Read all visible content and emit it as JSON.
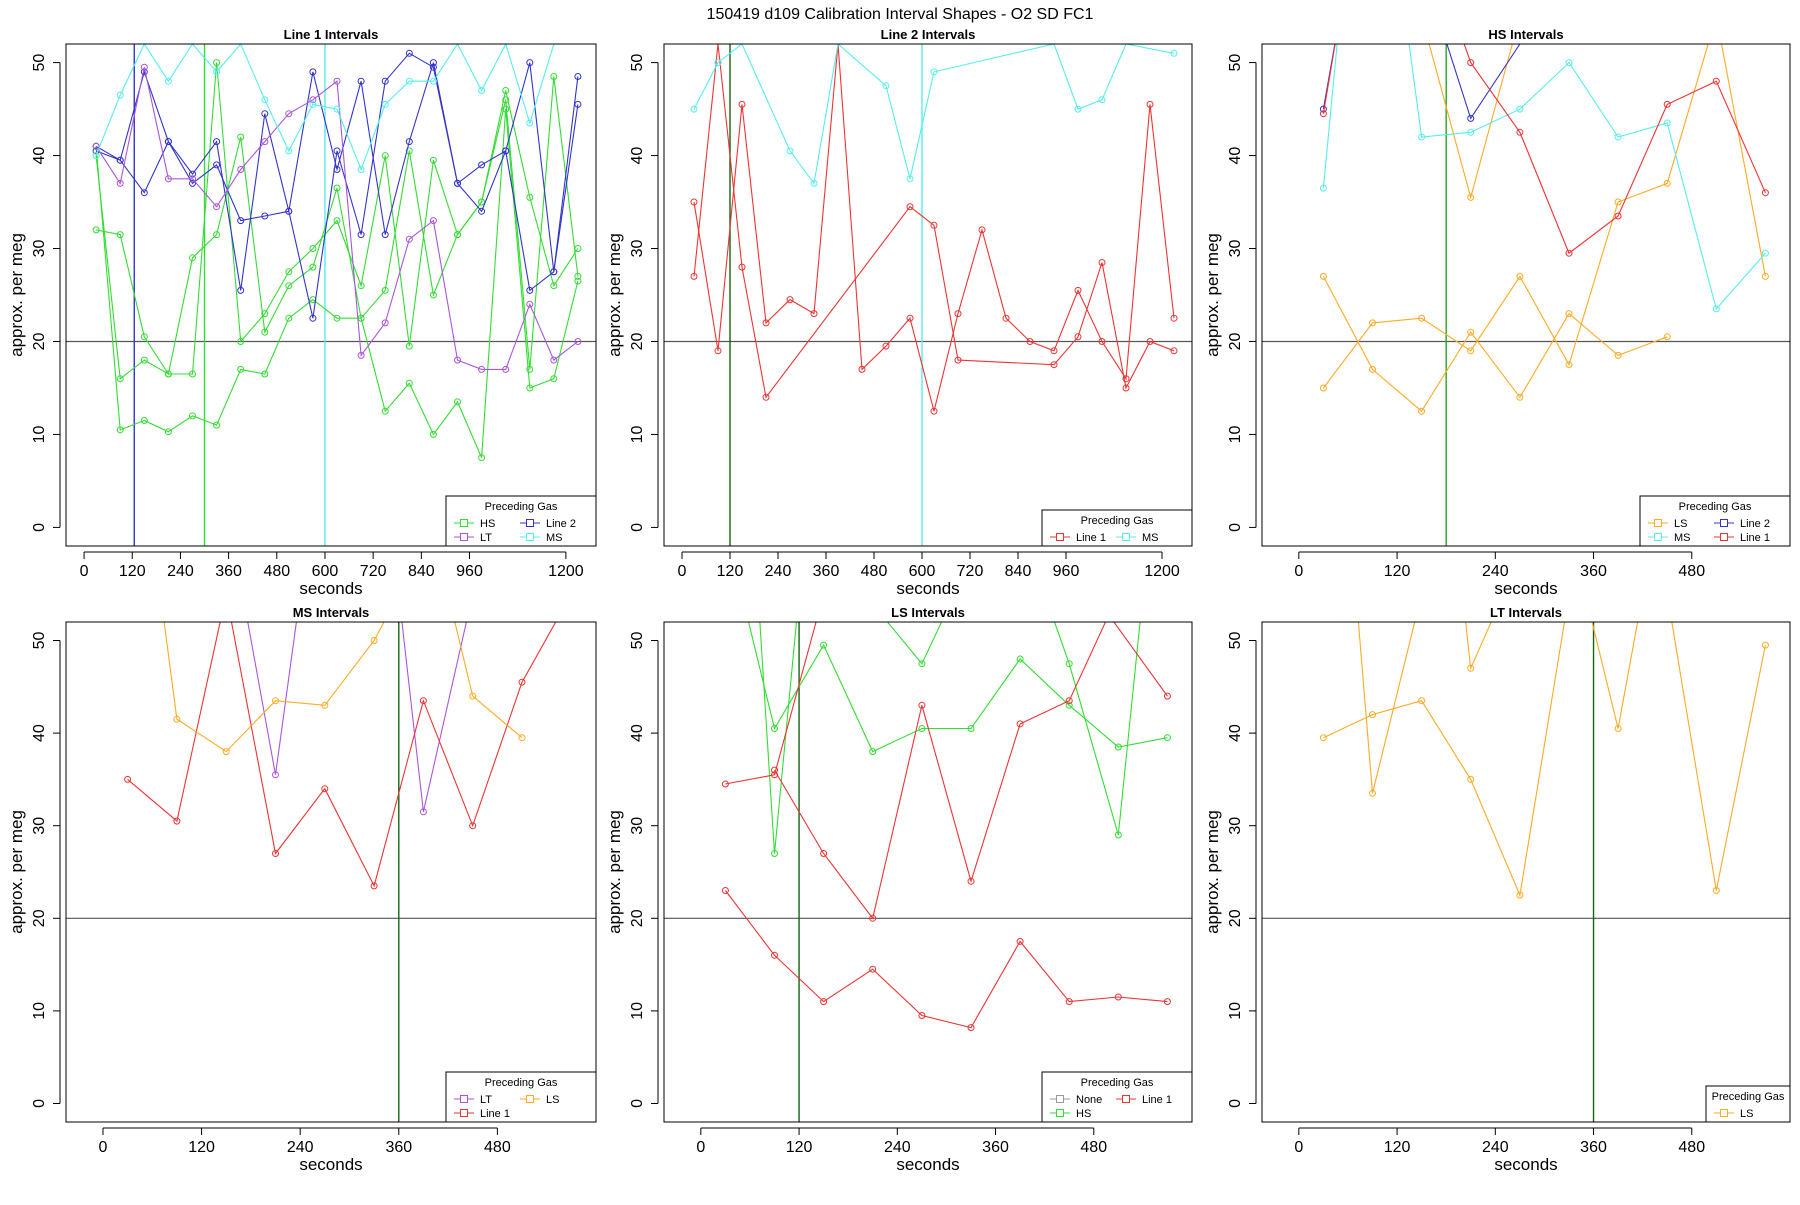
{
  "page_title": "150419   d109   Calibration Interval Shapes - O2 SD FC1",
  "colors": {
    "HS": "#33dd33",
    "Line 2": "#3333cc",
    "LT": "#aa55dd",
    "MS": "#55eeee",
    "Line 1": "#ee3333",
    "LS": "#ffaa22",
    "None": "#999999",
    "vline_green": "#22aa22",
    "vline_dark_green": "#116611",
    "refline": "#555555"
  },
  "chart_data": [
    {
      "type": "line",
      "title": "Line 1 Intervals",
      "xlabel": "seconds",
      "ylabel": "approx. per meg",
      "xlim": [
        -45,
        1275
      ],
      "ylim": [
        -2,
        52
      ],
      "xticks": [
        0,
        120,
        240,
        360,
        480,
        600,
        720,
        840,
        960,
        1200
      ],
      "yticks": [
        0,
        10,
        20,
        30,
        40,
        50
      ],
      "hlines": [
        20
      ],
      "vlines": [
        {
          "x": 125,
          "color": "Line 2"
        },
        {
          "x": 300,
          "color": "HS"
        },
        {
          "x": 600,
          "color": "MS"
        }
      ],
      "legend": {
        "title": "Preceding Gas",
        "position": "bottom-right",
        "entries": [
          "HS",
          "Line 2",
          "LT",
          "MS"
        ]
      },
      "series": [
        {
          "name": "HS",
          "x": [
            30,
            90,
            150,
            210,
            270,
            330,
            390,
            450,
            510,
            570,
            630,
            690,
            750,
            810,
            870,
            930,
            990,
            1050,
            1110,
            1170,
            1230
          ],
          "values": [
            32,
            31.5,
            20.5,
            16.5,
            29,
            31.5,
            42,
            21,
            26,
            28,
            36.5,
            22.5,
            25.5,
            40.5,
            25,
            31.5,
            35,
            47,
            35.5,
            26,
            30
          ]
        },
        {
          "name": "HS",
          "x": [
            30,
            90,
            150,
            210,
            270,
            330,
            390,
            450,
            510,
            570,
            630,
            690,
            750,
            810,
            870,
            930,
            990,
            1050,
            1110,
            1170,
            1230
          ],
          "values": [
            41,
            10.5,
            11.5,
            10.3,
            12,
            11,
            17,
            16.5,
            22.5,
            24.5,
            22.5,
            22.5,
            12.5,
            15.5,
            10,
            13.5,
            7.5,
            45,
            15,
            16,
            26.5
          ]
        },
        {
          "name": "HS",
          "x": [
            30,
            90,
            150,
            210,
            270,
            330,
            390,
            450,
            510,
            570,
            630,
            690,
            750,
            810,
            870,
            930,
            990,
            1050,
            1110,
            1170,
            1230
          ],
          "values": [
            40,
            16,
            18,
            16.5,
            16.5,
            50,
            20,
            23,
            27.5,
            30,
            33,
            26,
            40,
            19.5,
            39.5,
            31.5,
            35,
            46,
            17,
            48.5,
            27
          ]
        },
        {
          "name": "Line 2",
          "x": [
            30,
            90,
            150,
            210,
            270,
            330,
            390,
            450,
            510,
            570,
            630,
            690,
            750,
            810,
            870,
            930,
            990,
            1050,
            1110,
            1170,
            1230
          ],
          "values": [
            41,
            39.5,
            36,
            41.5,
            38,
            41.5,
            25.5,
            44.5,
            34,
            49,
            38.5,
            48,
            31.5,
            41.5,
            50,
            37,
            34,
            40.5,
            25.5,
            27.5,
            45.5
          ]
        },
        {
          "name": "Line 2",
          "x": [
            30,
            90,
            150,
            210,
            270,
            330,
            390,
            450,
            510,
            570,
            630,
            690,
            750,
            810,
            870,
            930,
            990,
            1050,
            1110,
            1170,
            1230
          ],
          "values": [
            40.5,
            39.5,
            49,
            41.5,
            37,
            39,
            33,
            33.5,
            34,
            22.5,
            40.5,
            31.5,
            48,
            51,
            49.5,
            37,
            39,
            40.5,
            50,
            27.5,
            48.5
          ]
        },
        {
          "name": "LT",
          "x": [
            30,
            90,
            150,
            210,
            270,
            330,
            390,
            450,
            510,
            570,
            630,
            690,
            750,
            810,
            870,
            930,
            990,
            1050,
            1110,
            1170,
            1230
          ],
          "values": [
            41,
            37,
            49.5,
            37.5,
            37.5,
            34.5,
            38.5,
            41.5,
            44.5,
            46,
            48,
            18.5,
            22,
            31,
            33,
            18,
            17,
            17,
            24,
            18,
            20
          ]
        },
        {
          "name": "MS",
          "x": [
            30,
            90,
            150,
            210,
            270,
            330,
            390,
            450,
            510,
            570,
            630,
            690,
            750,
            810,
            870,
            930,
            990,
            1050,
            1110,
            1170,
            1230
          ],
          "values": [
            40,
            46.5,
            52,
            48,
            52,
            49,
            52,
            46,
            40.5,
            45.5,
            45,
            38.5,
            45.5,
            48,
            48,
            52,
            47,
            52,
            43.5,
            52,
            52
          ]
        }
      ]
    },
    {
      "type": "line",
      "title": "Line 2 Intervals",
      "xlabel": "seconds",
      "ylabel": "approx. per meg",
      "xlim": [
        -45,
        1275
      ],
      "ylim": [
        -2,
        52
      ],
      "xticks": [
        0,
        120,
        240,
        360,
        480,
        600,
        720,
        840,
        960,
        1200
      ],
      "yticks": [
        0,
        10,
        20,
        30,
        40,
        50
      ],
      "hlines": [
        20
      ],
      "vlines": [
        {
          "x": 120,
          "color": "vline_dark_green"
        },
        {
          "x": 600,
          "color": "MS"
        }
      ],
      "legend": {
        "title": "Preceding Gas",
        "position": "bottom-right",
        "entries": [
          "Line 1",
          "MS"
        ]
      },
      "series": [
        {
          "name": "Line 1",
          "x": [
            30,
            90,
            150,
            210,
            270,
            330,
            390,
            450,
            510,
            570,
            630,
            690,
            750,
            810,
            870,
            930,
            990,
            1050,
            1110,
            1170,
            1230
          ],
          "values": [
            35,
            19,
            45.5,
            22,
            24.5,
            23,
            52,
            17,
            19.5,
            22.5,
            12.5,
            23,
            32,
            22.5,
            20,
            19,
            25.5,
            20,
            16,
            45.5,
            22.5
          ]
        },
        {
          "name": "Line 1",
          "x": [
            30,
            90,
            150,
            210,
            570,
            630,
            690,
            930,
            990,
            1050,
            1110,
            1170,
            1230
          ],
          "values": [
            27,
            52,
            28,
            14,
            34.5,
            32.5,
            18,
            17.5,
            20.5,
            28.5,
            15,
            20,
            19
          ]
        },
        {
          "name": "MS",
          "x": [
            30,
            90,
            150,
            270,
            330,
            390,
            510,
            570,
            630,
            930,
            990,
            1050,
            1110,
            1230
          ],
          "values": [
            45,
            50,
            52,
            40.5,
            37,
            52,
            47.5,
            37.5,
            49,
            52,
            45,
            46,
            52,
            51
          ]
        }
      ]
    },
    {
      "type": "line",
      "title": "HS Intervals",
      "xlabel": "seconds",
      "ylabel": "approx. per meg",
      "xlim": [
        -45,
        600
      ],
      "ylim": [
        -2,
        52
      ],
      "xticks": [
        0,
        120,
        240,
        360,
        480
      ],
      "yticks": [
        0,
        10,
        20,
        30,
        40,
        50
      ],
      "hlines": [
        20
      ],
      "vlines": [
        {
          "x": 180,
          "color": "vline_green"
        }
      ],
      "legend": {
        "title": "Preceding Gas",
        "position": "bottom-right",
        "entries": [
          "LS",
          "Line 2",
          "MS",
          "Line 1"
        ]
      },
      "series": [
        {
          "name": "LS",
          "x": [
            30,
            90,
            150,
            210,
            270,
            330,
            390,
            450
          ],
          "values": [
            27,
            17,
            12.5,
            21,
            14,
            23,
            18.5,
            20.5
          ]
        },
        {
          "name": "LS",
          "x": [
            30,
            90,
            150,
            210,
            270,
            330,
            390,
            450,
            510,
            570
          ],
          "values": [
            15,
            22,
            22.5,
            19,
            27,
            17.5,
            35,
            37,
            55,
            27
          ]
        },
        {
          "name": "LS",
          "x": [
            150,
            210,
            270,
            330,
            390
          ],
          "values": [
            55,
            35.5,
            55,
            55,
            55
          ]
        },
        {
          "name": "Line 2",
          "x": [
            30,
            50
          ],
          "values": [
            45,
            55
          ]
        },
        {
          "name": "Line 2",
          "x": [
            170,
            210,
            270
          ],
          "values": [
            55,
            44,
            52
          ]
        },
        {
          "name": "MS",
          "x": [
            30,
            50
          ],
          "values": [
            36.5,
            55
          ]
        },
        {
          "name": "MS",
          "x": [
            130,
            150,
            210,
            270,
            330,
            390,
            450,
            510,
            570
          ],
          "values": [
            55,
            42,
            42.5,
            45,
            50,
            42,
            43.5,
            23.5,
            29.5
          ]
        },
        {
          "name": "Line 1",
          "x": [
            30,
            50
          ],
          "values": [
            44.5,
            55
          ]
        },
        {
          "name": "Line 1",
          "x": [
            190,
            210,
            270,
            330,
            390,
            450,
            510,
            570
          ],
          "values": [
            55,
            50,
            42.5,
            29.5,
            33.5,
            45.5,
            48,
            36
          ]
        }
      ]
    },
    {
      "type": "line",
      "title": "MS Intervals",
      "xlabel": "seconds",
      "ylabel": "approx. per meg",
      "xlim": [
        -45,
        600
      ],
      "ylim": [
        -2,
        52
      ],
      "xticks": [
        0,
        120,
        240,
        360,
        480
      ],
      "yticks": [
        0,
        10,
        20,
        30,
        40,
        50
      ],
      "hlines": [
        20
      ],
      "vlines": [
        {
          "x": 360,
          "color": "vline_dark_green"
        }
      ],
      "legend": {
        "title": "Preceding Gas",
        "position": "bottom-right",
        "entries": [
          "LT",
          "LS",
          "Line 1"
        ]
      },
      "series": [
        {
          "name": "LT",
          "x": [
            170,
            210,
            240,
            360,
            390,
            450
          ],
          "values": [
            55,
            35.5,
            55,
            55,
            31.5,
            55
          ]
        },
        {
          "name": "Line 1",
          "x": [
            30,
            90,
            150,
            210,
            270,
            330,
            390,
            450,
            510,
            570
          ],
          "values": [
            35,
            30.5,
            55,
            27,
            34,
            23.5,
            43.5,
            30,
            45.5,
            55
          ]
        },
        {
          "name": "LS",
          "x": [
            70,
            90,
            150,
            210,
            270,
            330,
            360,
            420,
            450,
            510
          ],
          "values": [
            55,
            41.5,
            38,
            43.5,
            43,
            50,
            55,
            55,
            44,
            39.5
          ]
        }
      ]
    },
    {
      "type": "line",
      "title": "LS Intervals",
      "xlabel": "seconds",
      "ylabel": "approx. per meg",
      "xlim": [
        -45,
        600
      ],
      "ylim": [
        -2,
        52
      ],
      "xticks": [
        0,
        120,
        240,
        360,
        480
      ],
      "yticks": [
        0,
        10,
        20,
        30,
        40,
        50
      ],
      "hlines": [
        20
      ],
      "vlines": [
        {
          "x": 120,
          "color": "vline_dark_green"
        }
      ],
      "legend": {
        "title": "Preceding Gas",
        "position": "bottom-right",
        "entries": [
          "None",
          "Line 1",
          "HS"
        ]
      },
      "series": [
        {
          "name": "HS",
          "x": [
            50,
            90,
            150,
            210,
            270,
            330,
            390,
            450,
            510,
            570
          ],
          "values": [
            55,
            40.5,
            49.5,
            38,
            40.5,
            40.5,
            48,
            43,
            38.5,
            39.5
          ]
        },
        {
          "name": "HS",
          "x": [
            70,
            90,
            120,
            150,
            200,
            270,
            310,
            390,
            420,
            450,
            510,
            540
          ],
          "values": [
            55,
            27,
            55,
            55,
            55,
            47.5,
            55,
            55,
            55,
            47.5,
            29,
            55
          ]
        },
        {
          "name": "Line 1",
          "x": [
            30,
            90,
            150,
            210,
            270,
            330,
            390,
            450,
            480,
            570
          ],
          "values": [
            34.5,
            35.5,
            55,
            55,
            55,
            55,
            55,
            55,
            55,
            44
          ]
        },
        {
          "name": "Line 1",
          "x": [
            90,
            150,
            210,
            270,
            330,
            390,
            450,
            510
          ],
          "values": [
            36,
            27,
            20,
            43,
            24,
            41,
            43.5,
            55
          ]
        },
        {
          "name": "Line 1",
          "x": [
            30,
            90,
            150,
            210,
            270,
            330,
            390,
            450,
            510,
            570
          ],
          "values": [
            23,
            16,
            11,
            14.5,
            9.5,
            8.2,
            17.5,
            11,
            11.5,
            11
          ]
        }
      ]
    },
    {
      "type": "line",
      "title": "LT Intervals",
      "xlabel": "seconds",
      "ylabel": "approx. per meg",
      "xlim": [
        -45,
        600
      ],
      "ylim": [
        -2,
        52
      ],
      "xticks": [
        0,
        120,
        240,
        360,
        480
      ],
      "yticks": [
        0,
        10,
        20,
        30,
        40,
        50
      ],
      "hlines": [
        20
      ],
      "vlines": [
        {
          "x": 360,
          "color": "vline_dark_green"
        }
      ],
      "legend": {
        "title": "Preceding Gas",
        "position": "bottom-right",
        "entries": [
          "LS"
        ]
      },
      "series": [
        {
          "name": "LS",
          "x": [
            30,
            90,
            150,
            210,
            270,
            330,
            390,
            450,
            510,
            570
          ],
          "values": [
            39.5,
            42,
            43.5,
            35,
            22.5,
            55,
            55,
            55,
            55,
            55
          ]
        },
        {
          "name": "LS",
          "x": [
            70,
            90,
            150,
            200,
            210,
            250,
            330,
            350,
            390,
            420,
            450,
            510,
            570
          ],
          "values": [
            55,
            33.5,
            55,
            55,
            47,
            55,
            55,
            55,
            40.5,
            55,
            55,
            23,
            49.5
          ]
        }
      ]
    }
  ]
}
